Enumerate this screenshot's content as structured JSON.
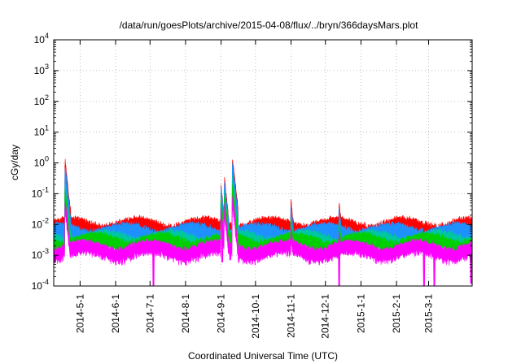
{
  "chart_data": {
    "type": "line",
    "title": "/data/run/goesPlots/archive/2015-04-08/flux/../bryn/366daysMars.plot",
    "xlabel": "Coordinated Universal Time (UTC)",
    "ylabel": "cGy/day",
    "y_scale": "log",
    "ylim": [
      0.0001,
      10000
    ],
    "xlim": [
      "2014-04-08",
      "2015-04-08"
    ],
    "grid": true,
    "x_ticks": [
      "2014-5-1",
      "2014-6-1",
      "2014-7-1",
      "2014-8-1",
      "2014-9-1",
      "2014-10-1",
      "2014-11-1",
      "2014-12-1",
      "2015-1-1",
      "2015-2-1",
      "2015-3-1"
    ],
    "y_ticks": [
      {
        "base": "10",
        "exp": "-4",
        "value": 0.0001
      },
      {
        "base": "10",
        "exp": "-3",
        "value": 0.001
      },
      {
        "base": "10",
        "exp": "-2",
        "value": 0.01
      },
      {
        "base": "10",
        "exp": "-1",
        "value": 0.1
      },
      {
        "base": "10",
        "exp": "0",
        "value": 1
      },
      {
        "base": "10",
        "exp": "1",
        "value": 10
      },
      {
        "base": "10",
        "exp": "2",
        "value": 100
      },
      {
        "base": "10",
        "exp": "3",
        "value": 1000
      },
      {
        "base": "10",
        "exp": "4",
        "value": 10000
      }
    ],
    "series_colors": [
      "#ff0000",
      "#1e90ff",
      "#1e90ff",
      "#00c8a0",
      "#00d000",
      "#ff00ff"
    ],
    "series_base_values": [
      0.0085,
      0.0055,
      0.0045,
      0.0032,
      0.0026,
      0.0015
    ],
    "spikes": [
      {
        "date": "2014-04-18",
        "values": [
          0.8,
          0.5,
          0.3,
          0.15,
          0.1,
          0.04
        ]
      },
      {
        "date": "2014-09-01",
        "values": [
          0.12,
          0.1,
          0.08,
          0.05,
          0.04,
          0.02
        ]
      },
      {
        "date": "2014-09-04",
        "values": [
          0.2,
          0.16,
          0.12,
          0.08,
          0.06,
          0.03
        ]
      },
      {
        "date": "2014-09-11",
        "values": [
          1.0,
          0.7,
          0.5,
          0.25,
          0.15,
          0.06
        ]
      },
      {
        "date": "2014-11-01",
        "values": [
          0.04,
          0.025,
          0.02,
          0.012,
          0.01,
          0.005
        ]
      },
      {
        "date": "2014-12-13",
        "values": [
          0.035,
          0.022,
          0.018,
          0.01,
          0.008,
          0.004
        ]
      }
    ],
    "dips": [
      {
        "date": "2014-07-04",
        "value": 0.0001
      },
      {
        "date": "2014-09-02",
        "value": 0.0006
      },
      {
        "date": "2014-09-09",
        "value": 0.0007
      },
      {
        "date": "2014-12-13",
        "value": 0.0001
      },
      {
        "date": "2015-02-25",
        "value": 0.0001
      },
      {
        "date": "2015-03-06",
        "value": 0.0001
      },
      {
        "date": "2015-04-07",
        "value": 0.00012
      }
    ]
  }
}
